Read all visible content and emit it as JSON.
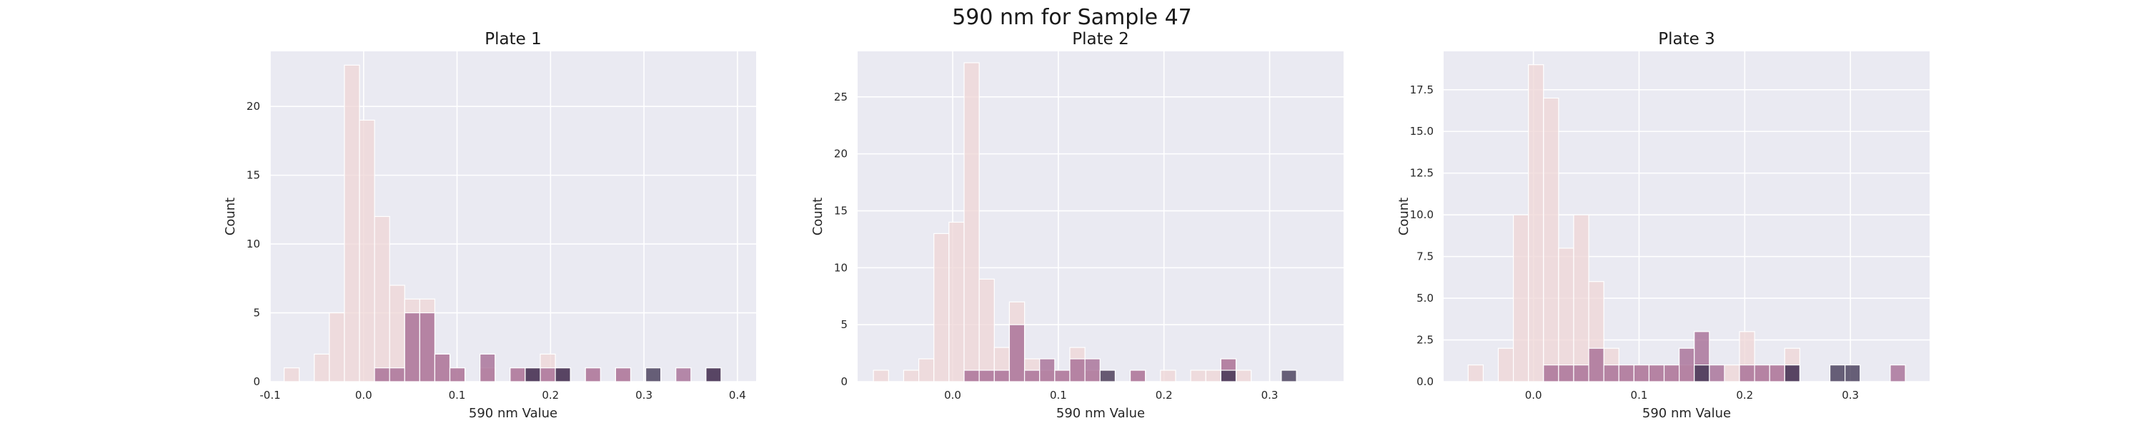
{
  "figure": {
    "title": "590 nm for Sample 47"
  },
  "colors": {
    "panel_bg": "#eaeaf2",
    "grid": "#ffffff",
    "hue_light": "#efd6d6",
    "hue_mid": "#a1668f",
    "hue_dark": "#3a2f4d"
  },
  "chart_data": [
    {
      "type": "bar",
      "title": "Plate 1",
      "xlabel": "590 nm Value",
      "ylabel": "Count",
      "xlim": [
        -0.1,
        0.42
      ],
      "ylim": [
        0,
        24
      ],
      "xticks": [
        {
          "v": -0.1,
          "t": "-0.1"
        },
        {
          "v": 0.0,
          "t": "0.0"
        },
        {
          "v": 0.1,
          "t": "0.1"
        },
        {
          "v": 0.2,
          "t": "0.2"
        },
        {
          "v": 0.3,
          "t": "0.3"
        },
        {
          "v": 0.4,
          "t": "0.4"
        }
      ],
      "yticks": [
        {
          "v": 0,
          "t": "0"
        },
        {
          "v": 5,
          "t": "5"
        },
        {
          "v": 10,
          "t": "10"
        },
        {
          "v": 15,
          "t": "15"
        },
        {
          "v": 20,
          "t": "20"
        }
      ],
      "grid": true,
      "bins": {
        "start": -0.085,
        "width": 0.01612,
        "count": 30
      },
      "series": [
        {
          "color_key": "hue_light",
          "counts": [
            1,
            0,
            2,
            5,
            23,
            19,
            12,
            7,
            6,
            6,
            2,
            1,
            0,
            1,
            0,
            1,
            1,
            2,
            1,
            0,
            1,
            0,
            1,
            0,
            0,
            0,
            0,
            0,
            0,
            0
          ]
        },
        {
          "color_key": "hue_mid",
          "counts": [
            0,
            0,
            0,
            0,
            0,
            0,
            1,
            1,
            5,
            5,
            2,
            1,
            0,
            2,
            0,
            1,
            1,
            1,
            1,
            0,
            1,
            0,
            1,
            0,
            0,
            0,
            1,
            0,
            1,
            0
          ]
        },
        {
          "color_key": "hue_dark",
          "counts": [
            0,
            0,
            0,
            0,
            0,
            0,
            0,
            0,
            0,
            0,
            0,
            0,
            0,
            0,
            0,
            0,
            1,
            0,
            1,
            0,
            0,
            0,
            0,
            0,
            1,
            0,
            0,
            0,
            1,
            0
          ]
        }
      ]
    },
    {
      "type": "bar",
      "title": "Plate 2",
      "xlabel": "590 nm Value",
      "ylabel": "Count",
      "xlim": [
        -0.09,
        0.37
      ],
      "ylim": [
        0,
        29
      ],
      "xticks": [
        {
          "v": 0.0,
          "t": "0.0"
        },
        {
          "v": 0.1,
          "t": "0.1"
        },
        {
          "v": 0.2,
          "t": "0.2"
        },
        {
          "v": 0.3,
          "t": "0.3"
        }
      ],
      "yticks": [
        {
          "v": 0,
          "t": "0"
        },
        {
          "v": 5,
          "t": "5"
        },
        {
          "v": 10,
          "t": "10"
        },
        {
          "v": 15,
          "t": "15"
        },
        {
          "v": 20,
          "t": "20"
        },
        {
          "v": 25,
          "t": "25"
        }
      ],
      "grid": true,
      "bins": {
        "start": -0.075,
        "width": 0.0143,
        "count": 30
      },
      "series": [
        {
          "color_key": "hue_light",
          "counts": [
            1,
            0,
            1,
            2,
            13,
            14,
            28,
            9,
            3,
            7,
            2,
            1,
            1,
            3,
            1,
            1,
            0,
            1,
            0,
            1,
            0,
            1,
            1,
            2,
            1,
            0,
            0,
            0,
            0,
            0
          ]
        },
        {
          "color_key": "hue_mid",
          "counts": [
            0,
            0,
            0,
            0,
            0,
            0,
            1,
            1,
            1,
            5,
            1,
            2,
            1,
            2,
            2,
            0,
            0,
            1,
            0,
            0,
            0,
            0,
            0,
            2,
            0,
            0,
            0,
            0,
            0,
            0
          ]
        },
        {
          "color_key": "hue_dark",
          "counts": [
            0,
            0,
            0,
            0,
            0,
            0,
            0,
            0,
            0,
            0,
            0,
            0,
            0,
            0,
            0,
            1,
            0,
            0,
            0,
            0,
            0,
            0,
            0,
            1,
            0,
            0,
            0,
            1,
            0,
            0
          ]
        }
      ]
    },
    {
      "type": "bar",
      "title": "Plate 3",
      "xlabel": "590 nm Value",
      "ylabel": "Count",
      "xlim": [
        -0.085,
        0.375
      ],
      "ylim": [
        0,
        19.8
      ],
      "xticks": [
        {
          "v": 0.0,
          "t": "0.0"
        },
        {
          "v": 0.1,
          "t": "0.1"
        },
        {
          "v": 0.2,
          "t": "0.2"
        },
        {
          "v": 0.3,
          "t": "0.3"
        }
      ],
      "yticks": [
        {
          "v": 0,
          "t": "0.0"
        },
        {
          "v": 2.5,
          "t": "2.5"
        },
        {
          "v": 5,
          "t": "5.0"
        },
        {
          "v": 7.5,
          "t": "7.5"
        },
        {
          "v": 10,
          "t": "10.0"
        },
        {
          "v": 12.5,
          "t": "12.5"
        },
        {
          "v": 15,
          "t": "15.0"
        },
        {
          "v": 17.5,
          "t": "17.5"
        }
      ],
      "grid": true,
      "bins": {
        "start": -0.0618,
        "width": 0.01427,
        "count": 30
      },
      "series": [
        {
          "color_key": "hue_light",
          "counts": [
            1,
            0,
            2,
            10,
            19,
            17,
            8,
            10,
            6,
            2,
            1,
            1,
            1,
            1,
            1,
            1,
            0,
            1,
            3,
            1,
            1,
            2,
            0,
            0,
            0,
            0,
            0,
            0,
            0,
            0
          ]
        },
        {
          "color_key": "hue_mid",
          "counts": [
            0,
            0,
            0,
            0,
            0,
            1,
            1,
            1,
            2,
            1,
            1,
            1,
            1,
            1,
            2,
            3,
            1,
            0,
            1,
            1,
            1,
            1,
            0,
            0,
            0,
            0,
            0,
            0,
            1,
            0
          ]
        },
        {
          "color_key": "hue_dark",
          "counts": [
            0,
            0,
            0,
            0,
            0,
            0,
            0,
            0,
            0,
            0,
            0,
            0,
            0,
            0,
            0,
            1,
            0,
            0,
            0,
            0,
            0,
            1,
            0,
            0,
            1,
            1,
            0,
            0,
            0,
            0
          ]
        }
      ]
    }
  ]
}
